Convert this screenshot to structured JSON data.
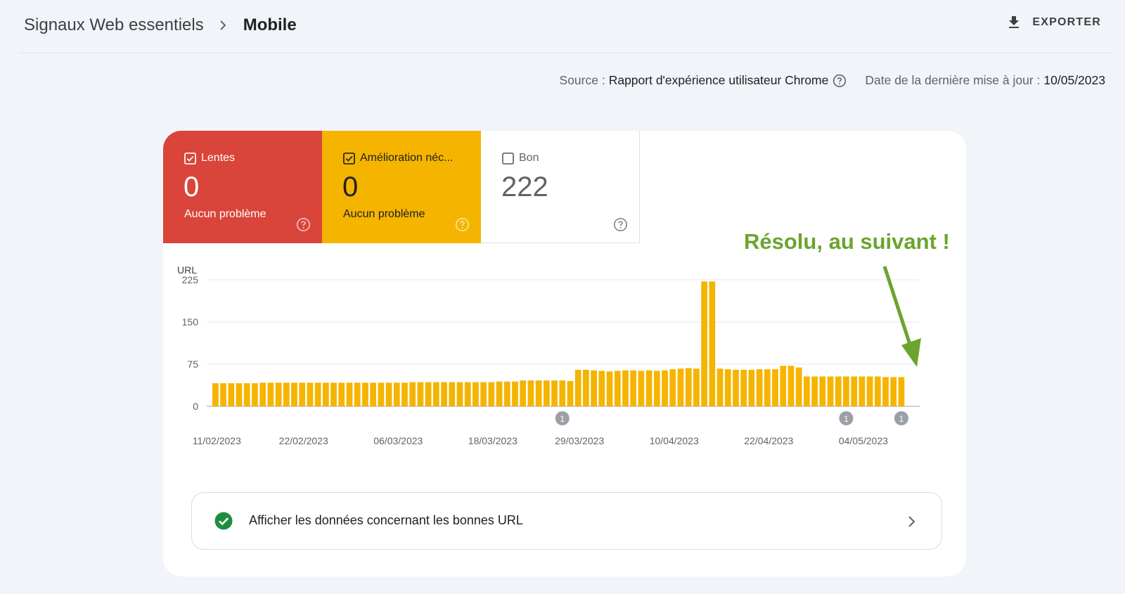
{
  "header": {
    "breadcrumb_root": "Signaux Web essentiels",
    "breadcrumb_current": "Mobile",
    "export_label": "EXPORTER"
  },
  "meta": {
    "source_label": "Source :",
    "source_value": "Rapport d'expérience utilisateur Chrome",
    "date_label": "Date de la dernière mise à jour :",
    "date_value": "10/05/2023"
  },
  "tiles": [
    {
      "label": "Lentes",
      "value": "0",
      "sub": "Aucun problème",
      "checked": true,
      "color": "#d9453a"
    },
    {
      "label": "Amélioration néc...",
      "value": "0",
      "sub": "Aucun problème",
      "checked": true,
      "color": "#f4b400"
    },
    {
      "label": "Bon",
      "value": "222",
      "sub": "",
      "checked": false,
      "color": "#ffffff"
    }
  ],
  "annotation": "Résolu, au suivant !",
  "colors": {
    "bar": "#f4b400",
    "annotation": "#6aa52d",
    "success": "#1e8e3e"
  },
  "chart_data": {
    "type": "bar",
    "ylabel": "URL",
    "ylim": [
      0,
      225
    ],
    "yticks": [
      0,
      75,
      150,
      225
    ],
    "xtick_labels": [
      "11/02/2023",
      "22/02/2023",
      "06/03/2023",
      "18/03/2023",
      "29/03/2023",
      "10/04/2023",
      "22/04/2023",
      "04/05/2023"
    ],
    "xtick_indices": [
      0,
      11,
      23,
      35,
      46,
      58,
      70,
      82
    ],
    "values": [
      41,
      41,
      41,
      41,
      41,
      41,
      42,
      42,
      42,
      42,
      42,
      42,
      42,
      42,
      42,
      42,
      42,
      42,
      42,
      42,
      42,
      42,
      42,
      42,
      42,
      43,
      43,
      43,
      43,
      43,
      43,
      43,
      43,
      43,
      43,
      43,
      44,
      44,
      44,
      46,
      46,
      46,
      46,
      46,
      46,
      45,
      65,
      65,
      64,
      63,
      62,
      63,
      64,
      64,
      63,
      64,
      63,
      64,
      66,
      67,
      68,
      67,
      222,
      222,
      67,
      66,
      65,
      65,
      65,
      66,
      66,
      66,
      72,
      72,
      69,
      53,
      53,
      53,
      53,
      53,
      53,
      53,
      53,
      53,
      53,
      52,
      52,
      52,
      0
    ],
    "annotation_markers": [
      {
        "index": 44,
        "label": "1"
      },
      {
        "index": 80,
        "label": "1"
      },
      {
        "index": 87,
        "label": "1"
      }
    ]
  },
  "good_urls": {
    "label": "Afficher les données concernant les bonnes URL"
  }
}
